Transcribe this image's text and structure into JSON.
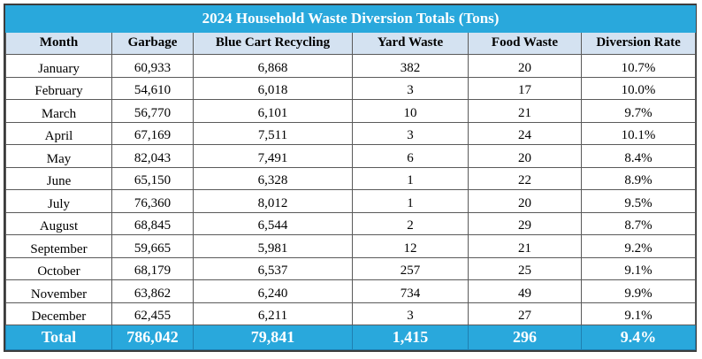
{
  "table": {
    "title": "2024 Household Waste Diversion Totals (Tons)",
    "headers": [
      "Month",
      "Garbage",
      "Blue Cart Recycling",
      "Yard Waste",
      "Food Waste",
      "Diversion Rate"
    ],
    "rows": [
      [
        "January",
        "60,933",
        "6,868",
        "382",
        "20",
        "10.7%"
      ],
      [
        "February",
        "54,610",
        "6,018",
        "3",
        "17",
        "10.0%"
      ],
      [
        "March",
        "56,770",
        "6,101",
        "10",
        "21",
        "9.7%"
      ],
      [
        "April",
        "67,169",
        "7,511",
        "3",
        "24",
        "10.1%"
      ],
      [
        "May",
        "82,043",
        "7,491",
        "6",
        "20",
        "8.4%"
      ],
      [
        "June",
        "65,150",
        "6,328",
        "1",
        "22",
        "8.9%"
      ],
      [
        "July",
        "76,360",
        "8,012",
        "1",
        "20",
        "9.5%"
      ],
      [
        "August",
        "68,845",
        "6,544",
        "2",
        "29",
        "8.7%"
      ],
      [
        "September",
        "59,665",
        "5,981",
        "12",
        "21",
        "9.2%"
      ],
      [
        "October",
        "68,179",
        "6,537",
        "257",
        "25",
        "9.1%"
      ],
      [
        "November",
        "63,862",
        "6,240",
        "734",
        "49",
        "9.9%"
      ],
      [
        "December",
        "62,455",
        "6,211",
        "3",
        "27",
        "9.1%"
      ]
    ],
    "total": [
      "Total",
      "786,042",
      "79,841",
      "1,415",
      "296",
      "9.4%"
    ]
  },
  "colors": {
    "title_bg": "#29a8dc",
    "header_bg": "#d4e2f1",
    "total_bg": "#29a8dc"
  }
}
